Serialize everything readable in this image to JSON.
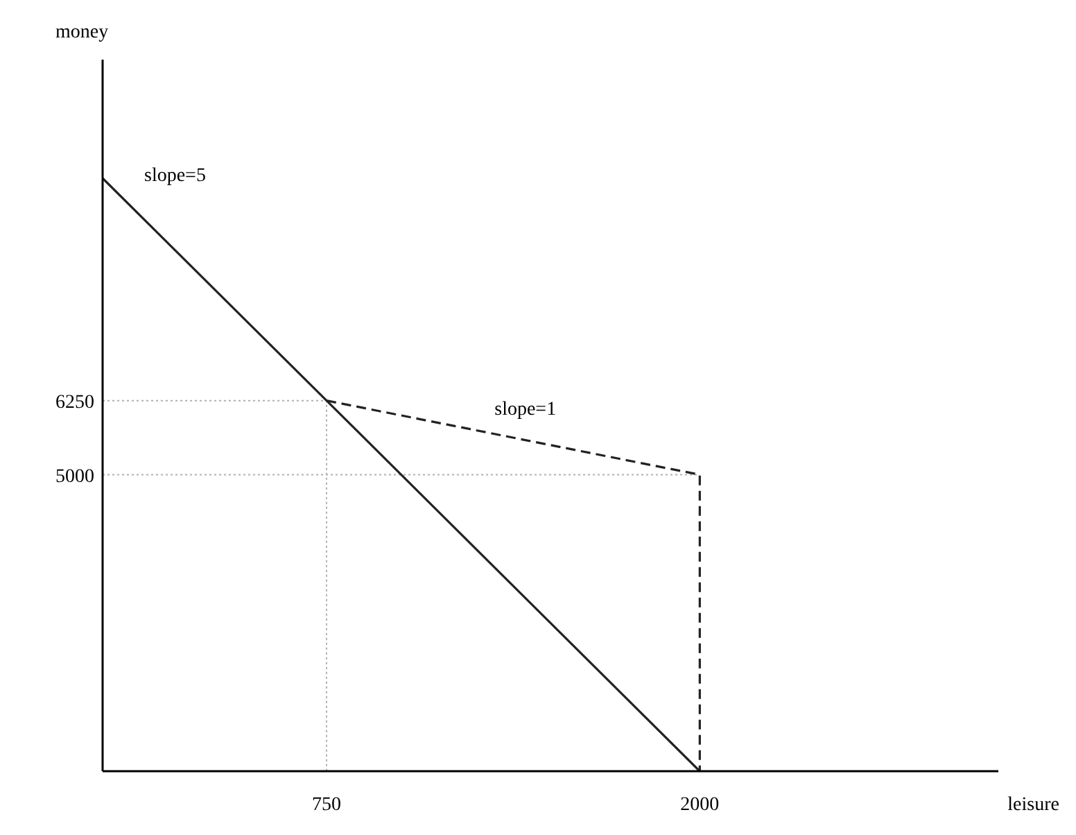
{
  "chart_data": {
    "type": "line",
    "xlabel": "leisure",
    "ylabel": "money",
    "xlim": [
      0,
      3000
    ],
    "ylim": [
      0,
      12000
    ],
    "xticks": [
      750,
      2000
    ],
    "yticks": [
      6250,
      5000
    ],
    "grid": false,
    "series": [
      {
        "color": "#222222",
        "line_style": "solid",
        "x": [
          0,
          2000
        ],
        "values": [
          10000,
          0
        ]
      },
      {
        "color": "#222222",
        "line_style": "dashed",
        "x": [
          750,
          2000,
          2000
        ],
        "values": [
          6250,
          5000,
          0
        ]
      },
      {
        "color": "#b0b0b0",
        "line_style": "dotted",
        "x": [
          0,
          750,
          750
        ],
        "values": [
          6250,
          6250,
          0
        ]
      },
      {
        "color": "#b0b0b0",
        "line_style": "dotted",
        "x": [
          0,
          2000
        ],
        "values": [
          5000,
          5000
        ]
      }
    ],
    "annotations": [
      "slope=5",
      "slope=1"
    ]
  }
}
